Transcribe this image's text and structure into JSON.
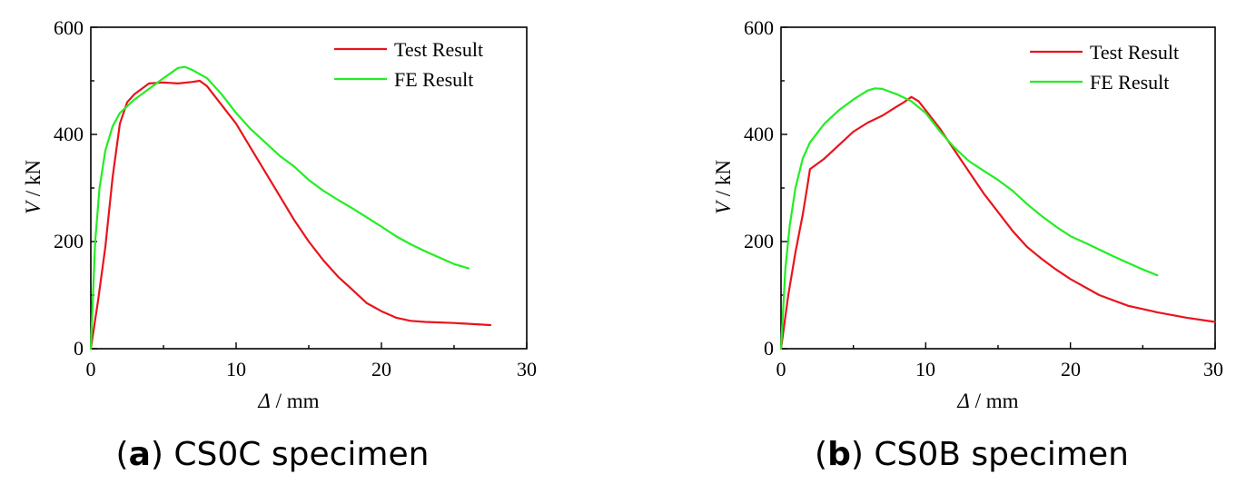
{
  "chart_data": [
    {
      "type": "line",
      "panel_letter": "a",
      "caption_text": " CS0C specimen",
      "xlabel_symbol": "Δ",
      "xlabel_unit": " / mm",
      "ylabel_symbol": "V",
      "ylabel_unit": " / kN",
      "xlim": [
        0,
        30
      ],
      "ylim": [
        0,
        600
      ],
      "xticks": [
        0,
        10,
        20,
        30
      ],
      "yticks": [
        0,
        200,
        400,
        600
      ],
      "legend_position": "top-right",
      "series": [
        {
          "name": "Test Result",
          "color": "#e8141c",
          "points": [
            [
              0,
              0
            ],
            [
              0.5,
              90
            ],
            [
              1,
              190
            ],
            [
              1.5,
              320
            ],
            [
              2,
              420
            ],
            [
              2.5,
              460
            ],
            [
              3,
              475
            ],
            [
              3.5,
              485
            ],
            [
              4,
              495
            ],
            [
              5,
              497
            ],
            [
              6,
              495
            ],
            [
              7,
              498
            ],
            [
              7.5,
              500
            ],
            [
              8,
              490
            ],
            [
              9,
              455
            ],
            [
              10,
              420
            ],
            [
              11,
              375
            ],
            [
              12,
              330
            ],
            [
              13,
              285
            ],
            [
              14,
              240
            ],
            [
              15,
              200
            ],
            [
              16,
              165
            ],
            [
              17,
              135
            ],
            [
              18,
              110
            ],
            [
              19,
              85
            ],
            [
              20,
              70
            ],
            [
              21,
              58
            ],
            [
              22,
              52
            ],
            [
              23,
              50
            ],
            [
              25,
              48
            ],
            [
              27.5,
              44
            ]
          ]
        },
        {
          "name": "FE Result",
          "color": "#22ee22",
          "points": [
            [
              0,
              0
            ],
            [
              0.3,
              200
            ],
            [
              0.6,
              300
            ],
            [
              1,
              370
            ],
            [
              1.5,
              415
            ],
            [
              2,
              440
            ],
            [
              3,
              465
            ],
            [
              4,
              485
            ],
            [
              5,
              505
            ],
            [
              6,
              524
            ],
            [
              6.5,
              526
            ],
            [
              7,
              520
            ],
            [
              8,
              505
            ],
            [
              9,
              475
            ],
            [
              10,
              440
            ],
            [
              11,
              410
            ],
            [
              12,
              385
            ],
            [
              13,
              360
            ],
            [
              14,
              340
            ],
            [
              15,
              315
            ],
            [
              16,
              295
            ],
            [
              17,
              278
            ],
            [
              18,
              262
            ],
            [
              19,
              245
            ],
            [
              20,
              228
            ],
            [
              21,
              210
            ],
            [
              22,
              195
            ],
            [
              23,
              182
            ],
            [
              24,
              170
            ],
            [
              25,
              158
            ],
            [
              26,
              150
            ]
          ]
        }
      ]
    },
    {
      "type": "line",
      "panel_letter": "b",
      "caption_text": " CS0B specimen",
      "xlabel_symbol": "Δ",
      "xlabel_unit": " / mm",
      "ylabel_symbol": "V",
      "ylabel_unit": " / kN",
      "xlim": [
        0,
        30
      ],
      "ylim": [
        0,
        600
      ],
      "xticks": [
        0,
        10,
        20,
        30
      ],
      "yticks": [
        0,
        200,
        400,
        600
      ],
      "legend_position": "top-right",
      "series": [
        {
          "name": "Test Result",
          "color": "#e8141c",
          "points": [
            [
              0,
              0
            ],
            [
              0.5,
              100
            ],
            [
              1,
              180
            ],
            [
              1.5,
              250
            ],
            [
              1.8,
              300
            ],
            [
              2,
              335
            ],
            [
              2.5,
              345
            ],
            [
              3,
              355
            ],
            [
              4,
              380
            ],
            [
              5,
              405
            ],
            [
              6,
              422
            ],
            [
              7,
              435
            ],
            [
              8,
              452
            ],
            [
              8.5,
              460
            ],
            [
              9,
              470
            ],
            [
              9.5,
              462
            ],
            [
              10,
              445
            ],
            [
              11,
              410
            ],
            [
              12,
              370
            ],
            [
              13,
              330
            ],
            [
              14,
              290
            ],
            [
              15,
              255
            ],
            [
              16,
              220
            ],
            [
              17,
              190
            ],
            [
              18,
              168
            ],
            [
              19,
              148
            ],
            [
              20,
              130
            ],
            [
              22,
              100
            ],
            [
              24,
              80
            ],
            [
              26,
              68
            ],
            [
              28,
              58
            ],
            [
              30,
              50
            ]
          ]
        },
        {
          "name": "FE Result",
          "color": "#22ee22",
          "points": [
            [
              0,
              0
            ],
            [
              0.3,
              150
            ],
            [
              0.6,
              230
            ],
            [
              1,
              300
            ],
            [
              1.5,
              355
            ],
            [
              2,
              385
            ],
            [
              3,
              420
            ],
            [
              4,
              445
            ],
            [
              5,
              465
            ],
            [
              6,
              482
            ],
            [
              6.5,
              486
            ],
            [
              7,
              485
            ],
            [
              8,
              475
            ],
            [
              9,
              462
            ],
            [
              10,
              440
            ],
            [
              11,
              405
            ],
            [
              12,
              375
            ],
            [
              13,
              350
            ],
            [
              14,
              332
            ],
            [
              15,
              315
            ],
            [
              16,
              295
            ],
            [
              17,
              270
            ],
            [
              18,
              248
            ],
            [
              19,
              228
            ],
            [
              20,
              210
            ],
            [
              21,
              198
            ],
            [
              22,
              185
            ],
            [
              23,
              172
            ],
            [
              24,
              160
            ],
            [
              25,
              148
            ],
            [
              26,
              137
            ]
          ]
        }
      ]
    }
  ]
}
